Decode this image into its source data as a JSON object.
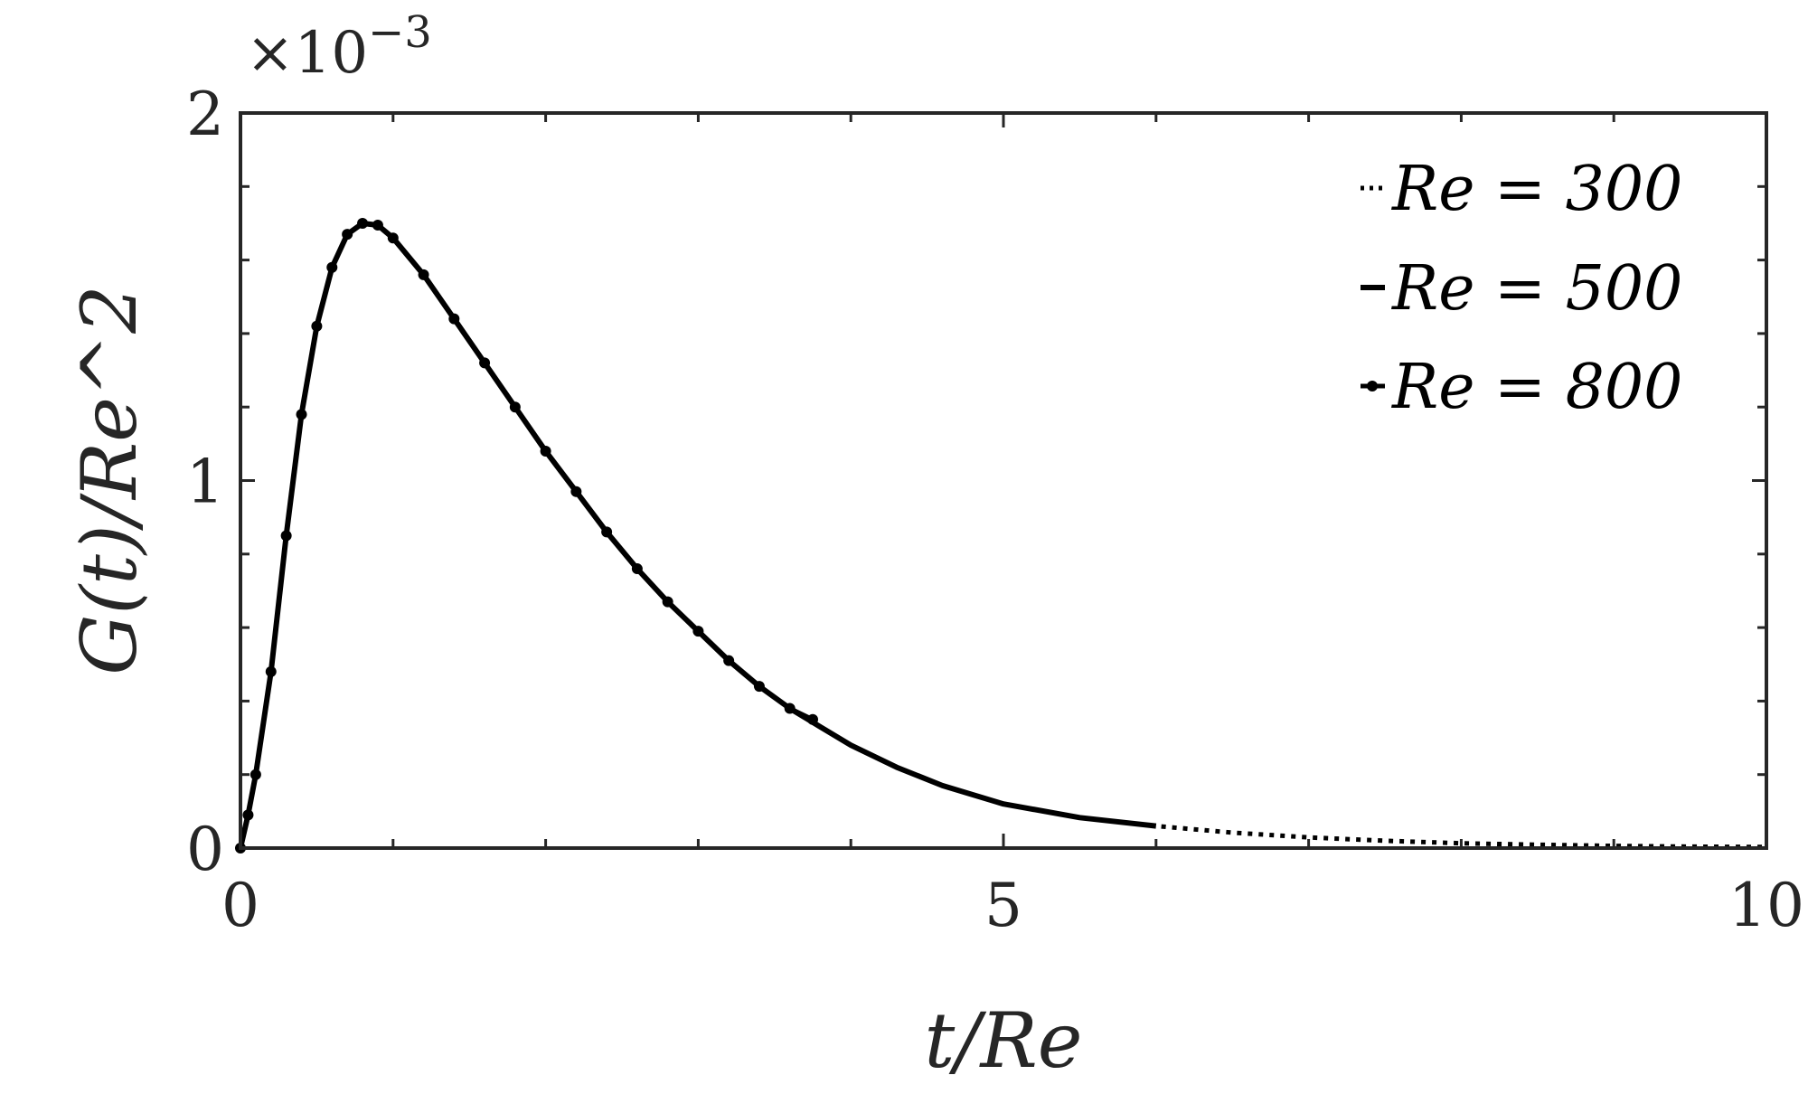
{
  "chart_data": {
    "type": "line",
    "xlabel": "t/Re",
    "ylabel": "G(t)/Re^2",
    "y_exponent_label": "×10",
    "y_exponent_power": "−3",
    "xlim": [
      0,
      10
    ],
    "ylim": [
      0,
      2
    ],
    "x_ticks": [
      0,
      5,
      10
    ],
    "x_tick_labels": [
      "0",
      "5",
      "10"
    ],
    "y_ticks": [
      0,
      1,
      2
    ],
    "y_tick_labels": [
      "0",
      "1",
      "2"
    ],
    "grid": false,
    "legend_position": "top-right",
    "colors": {
      "axis": "#262626",
      "series": "#000000",
      "background": "#ffffff"
    },
    "series": [
      {
        "name": "Re = 300",
        "style": "dotted",
        "x": [
          0,
          0.05,
          0.1,
          0.2,
          0.3,
          0.4,
          0.5,
          0.6,
          0.7,
          0.8,
          0.9,
          1.0,
          1.2,
          1.4,
          1.6,
          1.8,
          2.0,
          2.2,
          2.4,
          2.6,
          2.8,
          3.0,
          3.2,
          3.4,
          3.6,
          3.8,
          4.0,
          4.3,
          4.6,
          5.0,
          5.5,
          6.0,
          6.5,
          7.0,
          7.5,
          8.0,
          8.5,
          9.0,
          9.5,
          10.0
        ],
        "y": [
          0,
          0.09,
          0.2,
          0.48,
          0.85,
          1.18,
          1.42,
          1.58,
          1.67,
          1.7,
          1.695,
          1.66,
          1.56,
          1.44,
          1.32,
          1.2,
          1.08,
          0.97,
          0.86,
          0.76,
          0.67,
          0.59,
          0.51,
          0.44,
          0.38,
          0.33,
          0.28,
          0.22,
          0.17,
          0.12,
          0.083,
          0.06,
          0.042,
          0.029,
          0.02,
          0.013,
          0.009,
          0.006,
          0.004,
          0.003
        ]
      },
      {
        "name": "Re = 500",
        "style": "solid",
        "x": [
          0,
          0.05,
          0.1,
          0.2,
          0.3,
          0.4,
          0.5,
          0.6,
          0.7,
          0.8,
          0.9,
          1.0,
          1.2,
          1.4,
          1.6,
          1.8,
          2.0,
          2.2,
          2.4,
          2.6,
          2.8,
          3.0,
          3.2,
          3.4,
          3.6,
          3.8,
          4.0,
          4.3,
          4.6,
          5.0,
          5.5,
          6.0
        ],
        "y": [
          0,
          0.09,
          0.2,
          0.48,
          0.85,
          1.18,
          1.42,
          1.58,
          1.67,
          1.7,
          1.695,
          1.66,
          1.56,
          1.44,
          1.32,
          1.2,
          1.08,
          0.97,
          0.86,
          0.76,
          0.67,
          0.59,
          0.51,
          0.44,
          0.38,
          0.33,
          0.28,
          0.22,
          0.17,
          0.12,
          0.083,
          0.06
        ]
      },
      {
        "name": "Re = 800",
        "style": "markers",
        "x": [
          0,
          0.05,
          0.1,
          0.2,
          0.3,
          0.4,
          0.5,
          0.6,
          0.7,
          0.8,
          0.9,
          1.0,
          1.2,
          1.4,
          1.6,
          1.8,
          2.0,
          2.2,
          2.4,
          2.6,
          2.8,
          3.0,
          3.2,
          3.4,
          3.6,
          3.75
        ],
        "y": [
          0,
          0.09,
          0.2,
          0.48,
          0.85,
          1.18,
          1.42,
          1.58,
          1.67,
          1.7,
          1.695,
          1.66,
          1.56,
          1.44,
          1.32,
          1.2,
          1.08,
          0.97,
          0.86,
          0.76,
          0.67,
          0.59,
          0.51,
          0.44,
          0.38,
          0.35
        ]
      }
    ]
  }
}
